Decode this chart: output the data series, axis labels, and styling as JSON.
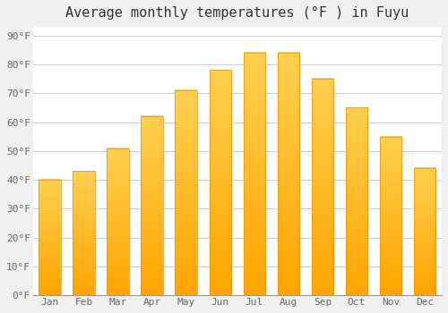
{
  "title": "Average monthly temperatures (°F ) in Fuyu",
  "months": [
    "Jan",
    "Feb",
    "Mar",
    "Apr",
    "May",
    "Jun",
    "Jul",
    "Aug",
    "Sep",
    "Oct",
    "Nov",
    "Dec"
  ],
  "values": [
    40,
    43,
    51,
    62,
    71,
    78,
    84,
    84,
    75,
    65,
    55,
    44
  ],
  "bar_color_main": "#FFA500",
  "bar_color_light": "#FFD050",
  "background_color": "#f0f0f0",
  "plot_bg_color": "#ffffff",
  "grid_color": "#cccccc",
  "yticks": [
    0,
    10,
    20,
    30,
    40,
    50,
    60,
    70,
    80,
    90
  ],
  "ylim": [
    0,
    93
  ],
  "title_fontsize": 11,
  "tick_fontsize": 8,
  "font_family": "monospace"
}
